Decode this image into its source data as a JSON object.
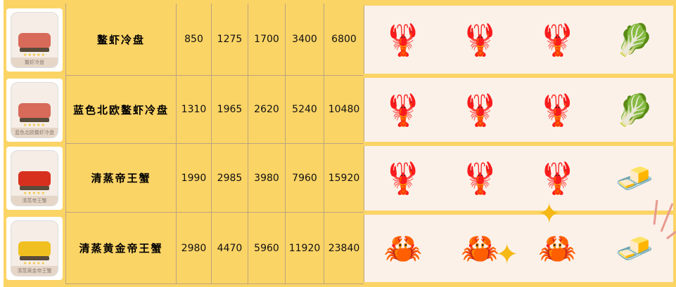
{
  "rows": [
    {
      "card_label": "鳌虾冷盘",
      "name": "鳌虾冷盘",
      "values": [
        "850",
        "1275",
        "1700",
        "3400",
        "6800"
      ],
      "dish_color": "#d86a5a",
      "ingredients": [
        "lobster-silhouette-icon",
        "lobster-silhouette-icon",
        "lobster-silhouette-icon",
        "lettuce-crate-icon"
      ]
    },
    {
      "card_label": "蓝色北欧鳌虾冷盘",
      "name": "蓝色北欧鳌虾冷盘",
      "values": [
        "1310",
        "1965",
        "2620",
        "5240",
        "10480"
      ],
      "dish_color": "#d86a5a",
      "ingredients": [
        "blue-lobster-icon",
        "blue-lobster-icon",
        "blue-lobster-icon",
        "lettuce-crate-icon"
      ]
    },
    {
      "card_label": "清蒸帝王蟹",
      "name": "清蒸帝王蟹",
      "values": [
        "1990",
        "2985",
        "3980",
        "7960",
        "15920"
      ],
      "dish_color": "#d8301e",
      "ingredients": [
        "lobster-silhouette-icon",
        "lobster-silhouette-icon",
        "lobster-silhouette-icon",
        "butter-icon"
      ]
    },
    {
      "card_label": "清蒸黄金帝王蟹",
      "name": "清蒸黄金帝王蟹",
      "values": [
        "2980",
        "4470",
        "5960",
        "11920",
        "23840"
      ],
      "dish_color": "#f0c020",
      "ingredients": [
        "golden-crab-icon",
        "golden-crab-icon",
        "golden-crab-icon",
        "butter-icon"
      ]
    }
  ],
  "stars": "★★★★★"
}
